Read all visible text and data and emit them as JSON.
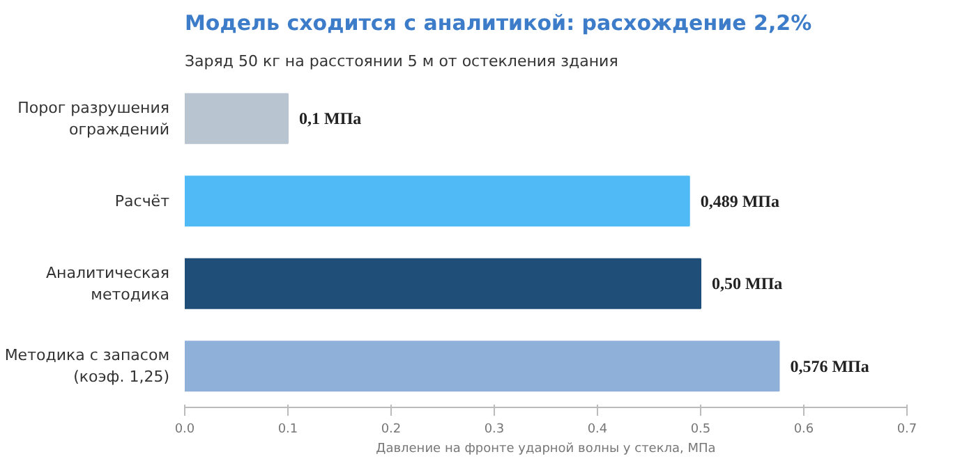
{
  "chart_data": {
    "type": "bar",
    "orientation": "horizontal",
    "title": "Модель сходится с аналитикой: расхождение 2,2%",
    "subtitle": "Заряд 50 кг на расстоянии 5 м от остекления здания",
    "xlabel": "Давление на фронте ударной волны у стекла, МПа",
    "categories": [
      "Порог разрушения\nограждений",
      "Расчёт",
      "Аналитическая\nметодика",
      "Методика с запасом\n(коэф. 1,25)"
    ],
    "values": [
      0.1,
      0.489,
      0.5,
      0.576
    ],
    "colors": [
      "#b8c4d0",
      "#4fbaf5",
      "#1f4e79",
      "#8fb0d8"
    ],
    "value_labels": [
      "0,1 МПа",
      "0,489 МПа",
      "0,50 МПа",
      "0,576 МПа"
    ],
    "xlim": [
      0,
      0.7
    ],
    "xticks": [
      {
        "value": 0,
        "label": "0.0"
      },
      0.1,
      0.2,
      0.3,
      0.4,
      0.5,
      0.6,
      0.7
    ],
    "grid": false
  }
}
